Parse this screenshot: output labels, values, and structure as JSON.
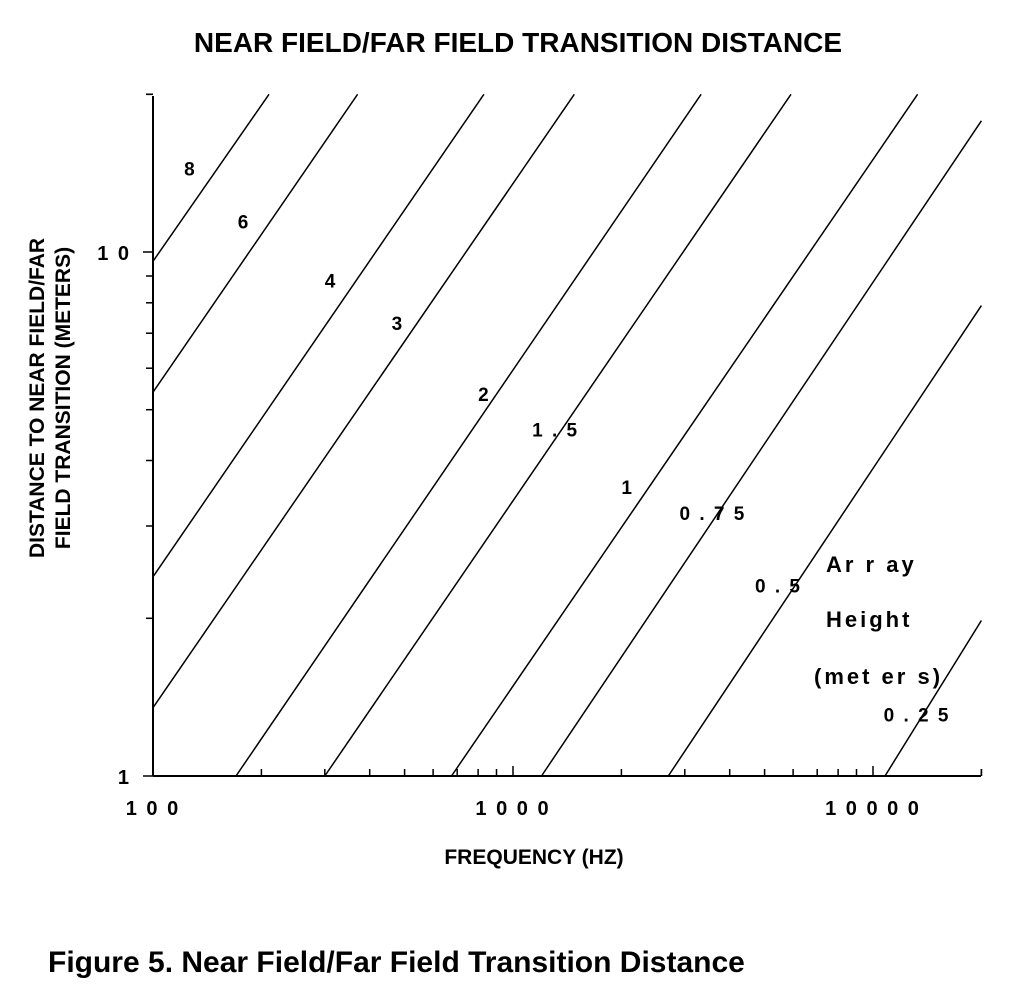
{
  "chart_data": {
    "type": "line",
    "title": "NEAR FIELD/FAR FIELD TRANSITION DISTANCE",
    "xlabel": "FREQUENCY (HZ)",
    "ylabel_lines": [
      "DISTANCE TO NEAR FIELD/FAR",
      "FIELD TRANSITION (METERS)"
    ],
    "x_scale": "log",
    "y_scale": "log",
    "xlim": [
      100,
      20000
    ],
    "ylim": [
      1,
      20
    ],
    "x_tick_labels": [
      {
        "value": 100,
        "label": "1 0 0"
      },
      {
        "value": 1000,
        "label": "1 0 0 0"
      },
      {
        "value": 10000,
        "label": "1 0 0 0 0"
      }
    ],
    "y_tick_labels": [
      {
        "value": 1,
        "label": "1"
      },
      {
        "value": 10,
        "label": "1 0"
      }
    ],
    "grid": false,
    "legend_title_lines": [
      "Ar r ay",
      "Height",
      "(met er s)"
    ],
    "legend_placement": "bottom-right",
    "series": [
      {
        "name": "8",
        "x": [
          100,
          210
        ],
        "y": [
          9.6,
          20
        ]
      },
      {
        "name": "6",
        "x": [
          100,
          370
        ],
        "y": [
          5.4,
          20
        ]
      },
      {
        "name": "4",
        "x": [
          100,
          830
        ],
        "y": [
          2.4,
          20
        ]
      },
      {
        "name": "3",
        "x": [
          100,
          1480
        ],
        "y": [
          1.35,
          20
        ]
      },
      {
        "name": "2",
        "x": [
          170,
          3330
        ],
        "y": [
          1,
          20
        ]
      },
      {
        "name": "1.5",
        "x": [
          300,
          5920
        ],
        "y": [
          1,
          20
        ]
      },
      {
        "name": "1",
        "x": [
          675,
          13300
        ],
        "y": [
          1,
          20
        ]
      },
      {
        "name": "0.75",
        "x": [
          1200,
          20000
        ],
        "y": [
          1,
          17.8
        ]
      },
      {
        "name": "0.5",
        "x": [
          2700,
          20000
        ],
        "y": [
          1,
          7.9
        ]
      },
      {
        "name": "0.25",
        "x": [
          10800,
          20000
        ],
        "y": [
          1,
          1.98
        ]
      }
    ],
    "series_labels": [
      {
        "text": "8",
        "x": 122,
        "y": 14.0
      },
      {
        "text": "6",
        "x": 172,
        "y": 11.1
      },
      {
        "text": "4",
        "x": 300,
        "y": 8.55
      },
      {
        "text": "3",
        "x": 460,
        "y": 7.1
      },
      {
        "text": "2",
        "x": 800,
        "y": 5.2
      },
      {
        "text": "1 . 5",
        "x": 1130,
        "y": 4.45
      },
      {
        "text": "1",
        "x": 2000,
        "y": 3.45
      },
      {
        "text": "0 . 7 5",
        "x": 2900,
        "y": 3.08
      },
      {
        "text": "0 . 5",
        "x": 4700,
        "y": 2.24
      },
      {
        "text": "0 . 2 5",
        "x": 10700,
        "y": 1.27
      }
    ]
  },
  "caption": "Figure 5.  Near Field/Far Field Transition Distance"
}
